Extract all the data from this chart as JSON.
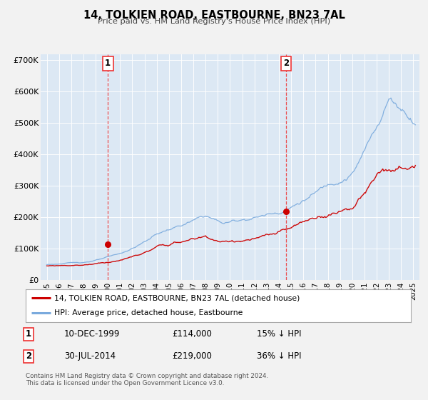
{
  "title": "14, TOLKIEN ROAD, EASTBOURNE, BN23 7AL",
  "subtitle": "Price paid vs. HM Land Registry's House Price Index (HPI)",
  "bg_color": "#f2f2f2",
  "plot_bg_color": "#dce8f4",
  "legend_label_red": "14, TOLKIEN ROAD, EASTBOURNE, BN23 7AL (detached house)",
  "legend_label_blue": "HPI: Average price, detached house, Eastbourne",
  "annotation1_date": "10-DEC-1999",
  "annotation1_price": "£114,000",
  "annotation1_hpi": "15% ↓ HPI",
  "annotation2_date": "30-JUL-2014",
  "annotation2_price": "£219,000",
  "annotation2_hpi": "36% ↓ HPI",
  "footer": "Contains HM Land Registry data © Crown copyright and database right 2024.\nThis data is licensed under the Open Government Licence v3.0.",
  "ylim": [
    0,
    720000
  ],
  "yticks": [
    0,
    100000,
    200000,
    300000,
    400000,
    500000,
    600000,
    700000
  ],
  "ytick_labels": [
    "£0",
    "£100K",
    "£200K",
    "£300K",
    "£400K",
    "£500K",
    "£600K",
    "£700K"
  ],
  "red_color": "#cc0000",
  "blue_color": "#7aaadd",
  "marker_color": "#cc0000",
  "vline_color": "#ee3333",
  "sale1_x": 2000.0,
  "sale1_y": 114000,
  "sale2_x": 2014.58,
  "sale2_y": 219000,
  "xlim_left": 1994.5,
  "xlim_right": 2025.5
}
